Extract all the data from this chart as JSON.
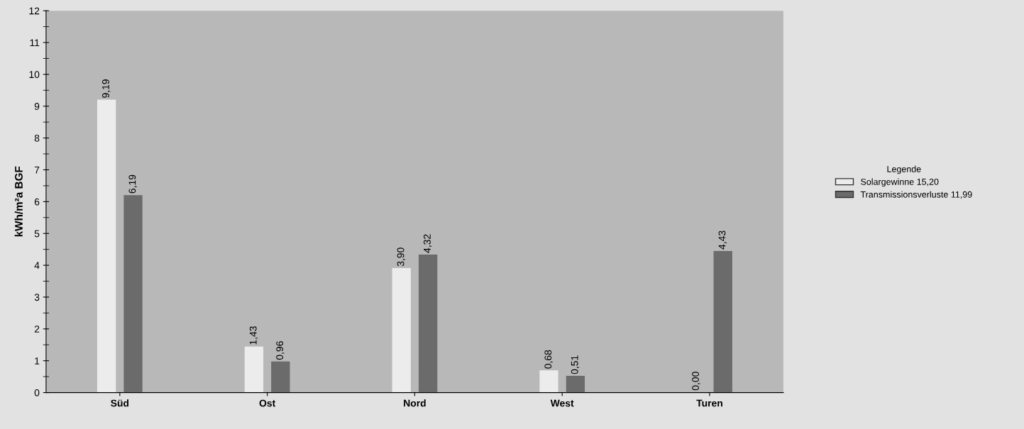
{
  "chart_data": {
    "type": "bar",
    "ylabel": "kWh/m²a BGF",
    "legend_title": "Legende",
    "legend": "right",
    "grid": false,
    "categories": [
      "Süd",
      "Ost",
      "Nord",
      "West",
      "Turen"
    ],
    "ylim": [
      0,
      12
    ],
    "yticks": [
      0,
      1,
      2,
      3,
      4,
      5,
      6,
      7,
      8,
      9,
      10,
      11,
      12
    ],
    "series": [
      {
        "name": "Solargewinne 15,20",
        "color": "#ececec",
        "values": [
          9.19,
          1.43,
          3.9,
          0.68,
          0.0
        ],
        "value_labels": [
          "9,19",
          "1,43",
          "3,90",
          "0,68",
          "0,00"
        ]
      },
      {
        "name": "Transmissionsverluste 11,99",
        "color": "#6b6b6b",
        "values": [
          6.19,
          0.96,
          4.32,
          0.51,
          4.43
        ],
        "value_labels": [
          "6,19",
          "0,96",
          "4,32",
          "0,51",
          "4,43"
        ]
      }
    ]
  }
}
